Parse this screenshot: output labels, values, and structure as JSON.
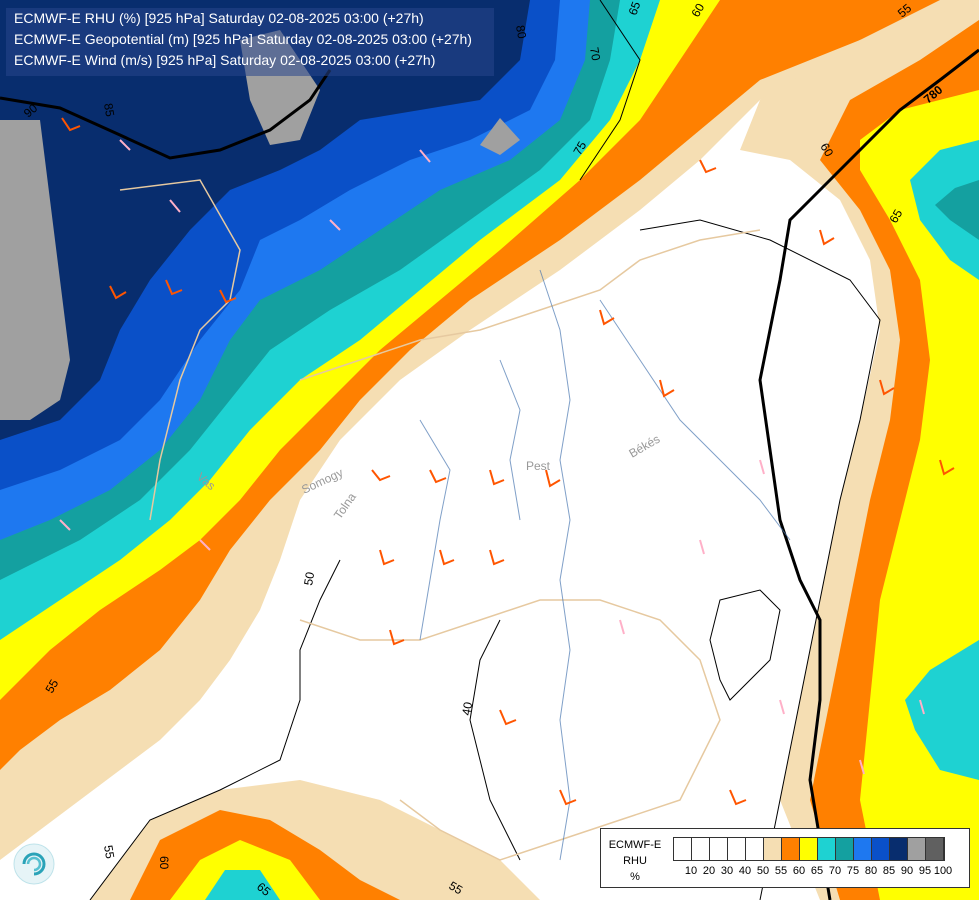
{
  "title_lines": [
    "ECMWF-E RHU (%) [925 hPa] Saturday 02-08-2025 03:00 (+27h)",
    "ECMWF-E Geopotential (m) [925 hPa] Saturday 02-08-2025 03:00 (+27h)",
    "ECMWF-E Wind (m/s) [925 hPa] Saturday 02-08-2025 03:00 (+27h)"
  ],
  "legend": {
    "model": "ECMWF-E",
    "variable": "RHU",
    "unit": "%",
    "bins": [
      {
        "tick": "10",
        "color": "#ffffff"
      },
      {
        "tick": "20",
        "color": "#ffffff"
      },
      {
        "tick": "30",
        "color": "#ffffff"
      },
      {
        "tick": "40",
        "color": "#ffffff"
      },
      {
        "tick": "50",
        "color": "#ffffff"
      },
      {
        "tick": "55",
        "color": "#f5deb3"
      },
      {
        "tick": "60",
        "color": "#ff8000"
      },
      {
        "tick": "65",
        "color": "#ffff00"
      },
      {
        "tick": "70",
        "color": "#1ed2d2"
      },
      {
        "tick": "75",
        "color": "#14a0a0"
      },
      {
        "tick": "80",
        "color": "#1e78f0"
      },
      {
        "tick": "85",
        "color": "#0a50c8"
      },
      {
        "tick": "90",
        "color": "#082d6e"
      },
      {
        "tick": "95",
        "color": "#a0a0a0"
      },
      {
        "tick": "100",
        "color": "#606060"
      }
    ]
  },
  "contour_labels": {
    "rhu": [
      "65",
      "60",
      "55",
      "80",
      "70",
      "75",
      "85",
      "90",
      "60",
      "65",
      "50",
      "55",
      "40",
      "65",
      "60",
      "55",
      "55"
    ],
    "geopotential": [
      "780"
    ]
  },
  "place_labels": [
    "Pest",
    "Békés",
    "Vas",
    "Tolna",
    "Somogy"
  ]
}
